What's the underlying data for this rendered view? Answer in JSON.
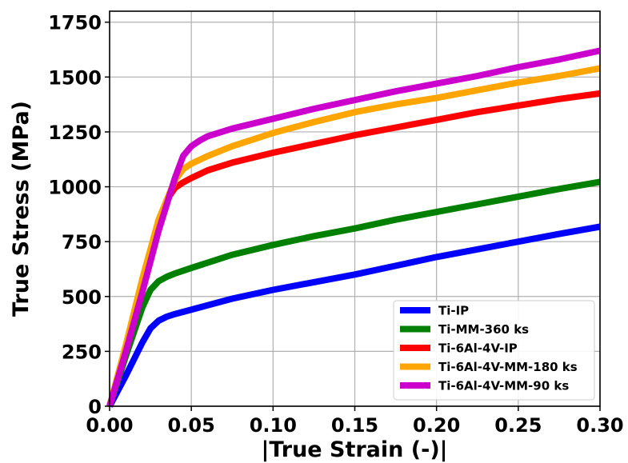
{
  "chart_data": {
    "type": "line",
    "title": "",
    "xlabel": "|True Strain (-)|",
    "ylabel": "True Stress (MPa)",
    "xlim": [
      0,
      0.3
    ],
    "ylim": [
      0,
      1800
    ],
    "xticks": [
      0.0,
      0.05,
      0.1,
      0.15,
      0.2,
      0.25,
      0.3
    ],
    "xtick_labels": [
      "0.00",
      "0.05",
      "0.10",
      "0.15",
      "0.20",
      "0.25",
      "0.30"
    ],
    "yticks": [
      0,
      250,
      500,
      750,
      1000,
      1250,
      1500,
      1750
    ],
    "ytick_labels": [
      "0",
      "250",
      "500",
      "750",
      "1000",
      "1250",
      "1500",
      "1750"
    ],
    "grid": true,
    "legend_position": "lower-right",
    "series": [
      {
        "name": "Ti-IP",
        "color": "#0000ff",
        "x": [
          0,
          0.01,
          0.02,
          0.025,
          0.03,
          0.035,
          0.04,
          0.05,
          0.075,
          0.1,
          0.125,
          0.15,
          0.175,
          0.2,
          0.225,
          0.25,
          0.275,
          0.3
        ],
        "y": [
          0,
          140,
          290,
          355,
          390,
          408,
          420,
          440,
          490,
          530,
          565,
          600,
          640,
          680,
          715,
          750,
          785,
          818
        ]
      },
      {
        "name": "Ti-MM-360 ks",
        "color": "#008000",
        "x": [
          0,
          0.01,
          0.02,
          0.025,
          0.03,
          0.035,
          0.04,
          0.05,
          0.075,
          0.1,
          0.125,
          0.15,
          0.175,
          0.2,
          0.225,
          0.25,
          0.275,
          0.3
        ],
        "y": [
          0,
          230,
          450,
          530,
          570,
          590,
          605,
          630,
          690,
          735,
          775,
          810,
          850,
          885,
          920,
          955,
          990,
          1022
        ]
      },
      {
        "name": "Ti-6Al-4V-IP",
        "color": "#ff0000",
        "x": [
          0,
          0.01,
          0.02,
          0.03,
          0.035,
          0.04,
          0.045,
          0.05,
          0.06,
          0.075,
          0.1,
          0.125,
          0.15,
          0.175,
          0.2,
          0.225,
          0.25,
          0.275,
          0.3
        ],
        "y": [
          0,
          270,
          560,
          830,
          940,
          995,
          1020,
          1040,
          1075,
          1110,
          1155,
          1195,
          1235,
          1270,
          1305,
          1340,
          1370,
          1400,
          1425
        ]
      },
      {
        "name": "Ti-6Al-4V-MM-180 ks",
        "color": "#ffa500",
        "x": [
          0,
          0.01,
          0.02,
          0.03,
          0.04,
          0.045,
          0.05,
          0.06,
          0.075,
          0.1,
          0.125,
          0.15,
          0.175,
          0.2,
          0.225,
          0.25,
          0.275,
          0.3
        ],
        "y": [
          0,
          280,
          580,
          850,
          1030,
          1080,
          1105,
          1140,
          1185,
          1245,
          1295,
          1340,
          1375,
          1405,
          1440,
          1475,
          1505,
          1540
        ]
      },
      {
        "name": "Ti-6Al-4V-MM-90 ks",
        "color": "#cc00cc",
        "x": [
          0,
          0.01,
          0.02,
          0.03,
          0.04,
          0.045,
          0.05,
          0.055,
          0.06,
          0.075,
          0.1,
          0.125,
          0.15,
          0.175,
          0.2,
          0.225,
          0.25,
          0.275,
          0.3
        ],
        "y": [
          0,
          250,
          520,
          800,
          1040,
          1140,
          1185,
          1210,
          1230,
          1265,
          1310,
          1355,
          1395,
          1435,
          1470,
          1505,
          1545,
          1580,
          1620
        ]
      }
    ]
  }
}
